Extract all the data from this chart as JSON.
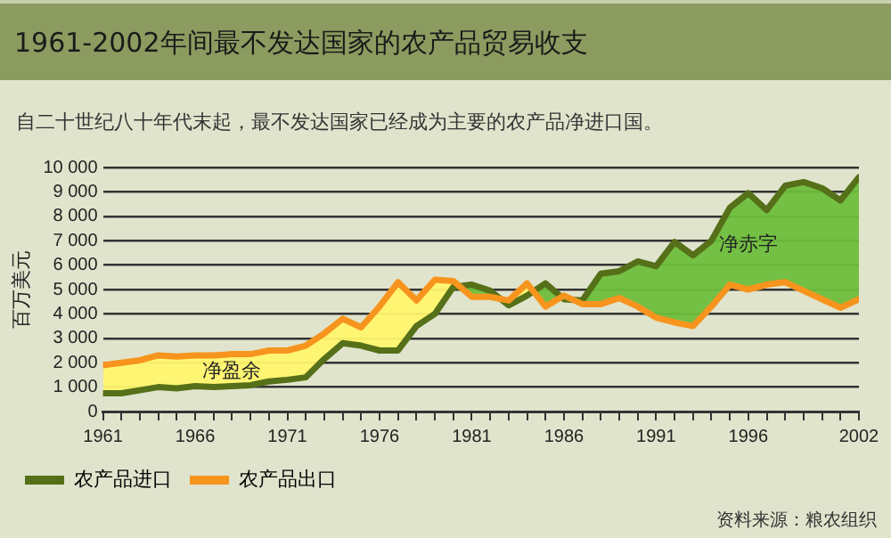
{
  "chart_data": {
    "type": "line",
    "title": "1961-2002年间最不发达国家的农产品贸易收支",
    "subtitle": "自二十世纪八十年代末起，最不发达国家已经成为主要的农产品净进口国。",
    "ylabel": "百万美元",
    "x": [
      1961,
      1962,
      1963,
      1964,
      1965,
      1966,
      1967,
      1968,
      1969,
      1970,
      1971,
      1972,
      1973,
      1974,
      1975,
      1976,
      1977,
      1978,
      1979,
      1980,
      1981,
      1982,
      1983,
      1984,
      1985,
      1986,
      1987,
      1988,
      1989,
      1990,
      1991,
      1992,
      1993,
      1994,
      1995,
      1996,
      1997,
      1998,
      1999,
      2000,
      2001,
      2002
    ],
    "series": [
      {
        "name": "农产品进口",
        "color": "#557018",
        "values": [
          750,
          750,
          870,
          1000,
          950,
          1040,
          1000,
          1040,
          1080,
          1230,
          1300,
          1400,
          2150,
          2800,
          2700,
          2500,
          2500,
          3500,
          4000,
          5100,
          5200,
          4950,
          4350,
          4750,
          5250,
          4600,
          4550,
          5650,
          5750,
          6150,
          5950,
          6950,
          6400,
          7000,
          8350,
          8950,
          8250,
          9250,
          9400,
          9150,
          8650,
          9600
        ]
      },
      {
        "name": "农产品出口",
        "color": "#f7941d",
        "values": [
          1900,
          2000,
          2100,
          2300,
          2250,
          2300,
          2300,
          2350,
          2350,
          2500,
          2500,
          2700,
          3200,
          3800,
          3450,
          4300,
          5300,
          4550,
          5400,
          5350,
          4700,
          4700,
          4550,
          5250,
          4300,
          4750,
          4400,
          4400,
          4650,
          4300,
          3850,
          3650,
          3500,
          4300,
          5200,
          5000,
          5200,
          5300,
          4950,
          4600,
          4250,
          4600
        ]
      }
    ],
    "xlim": [
      1961,
      2002
    ],
    "xticks": [
      1961,
      {
        "value": 1962,
        "label": null
      },
      {
        "value": 1963,
        "label": null
      },
      {
        "value": 1964,
        "label": null
      },
      {
        "value": 1965,
        "label": null
      },
      1966,
      {
        "value": 1967,
        "label": null
      },
      {
        "value": 1968,
        "label": null
      },
      {
        "value": 1969,
        "label": null
      },
      {
        "value": 1970,
        "label": null
      },
      1971,
      {
        "value": 1972,
        "label": null
      },
      {
        "value": 1973,
        "label": null
      },
      {
        "value": 1974,
        "label": null
      },
      {
        "value": 1975,
        "label": null
      },
      1976,
      {
        "value": 1977,
        "label": null
      },
      {
        "value": 1978,
        "label": null
      },
      {
        "value": 1979,
        "label": null
      },
      {
        "value": 1980,
        "label": null
      },
      1981,
      {
        "value": 1982,
        "label": null
      },
      {
        "value": 1983,
        "label": null
      },
      {
        "value": 1984,
        "label": null
      },
      {
        "value": 1985,
        "label": null
      },
      1986,
      {
        "value": 1987,
        "label": null
      },
      {
        "value": 1988,
        "label": null
      },
      {
        "value": 1989,
        "label": null
      },
      {
        "value": 1990,
        "label": null
      },
      1991,
      {
        "value": 1992,
        "label": null
      },
      {
        "value": 1993,
        "label": null
      },
      {
        "value": 1994,
        "label": null
      },
      {
        "value": 1995,
        "label": null
      },
      1996,
      {
        "value": 1997,
        "label": null
      },
      {
        "value": 1998,
        "label": null
      },
      {
        "value": 1999,
        "label": null
      },
      {
        "value": 2000,
        "label": null
      },
      {
        "value": 2001,
        "label": null
      },
      2002
    ],
    "ylim": [
      0,
      10000
    ],
    "yticks": [
      0,
      {
        "value": 1000,
        "label": "1 000"
      },
      {
        "value": 2000,
        "label": "2 000"
      },
      {
        "value": 3000,
        "label": "3 000"
      },
      {
        "value": 4000,
        "label": "4 000"
      },
      {
        "value": 5000,
        "label": "5 000"
      },
      {
        "value": 6000,
        "label": "6 000"
      },
      {
        "value": 7000,
        "label": "7 000"
      },
      {
        "value": 8000,
        "label": "8 000"
      },
      {
        "value": 9000,
        "label": "9 000"
      },
      {
        "value": 10000,
        "label": "10 000"
      }
    ],
    "grid": "y",
    "legend": "bottom",
    "marker": "none",
    "line_style": "solid",
    "annotations": [
      "净盈余",
      "净赤字",
      "资料来源：粮农组织"
    ]
  }
}
